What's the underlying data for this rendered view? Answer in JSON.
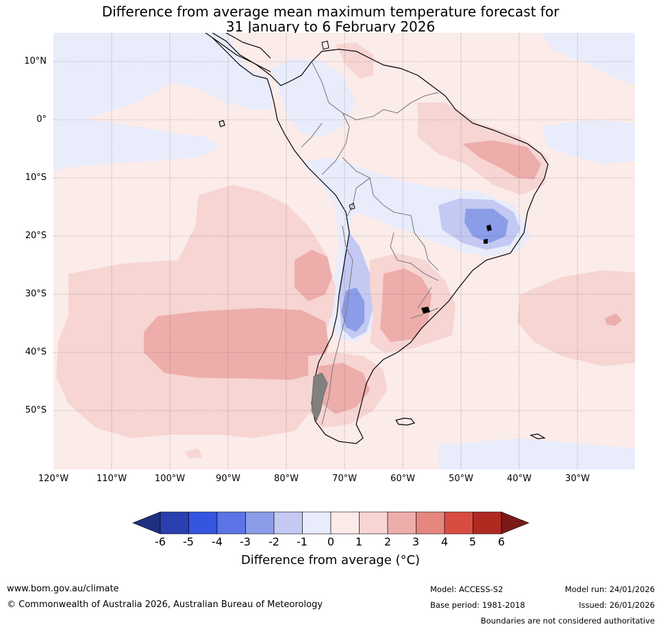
{
  "title": {
    "line1": "Difference from average mean maximum temperature forecast for",
    "line2": "31 January to 6 February 2026"
  },
  "map": {
    "lat_labels": [
      "10°N",
      "0°",
      "10°S",
      "20°S",
      "30°S",
      "40°S",
      "50°S"
    ],
    "lon_labels": [
      "120°W",
      "110°W",
      "100°W",
      "90°W",
      "80°W",
      "70°W",
      "60°W",
      "50°W",
      "40°W",
      "30°W"
    ]
  },
  "colorbar": {
    "colors": [
      "#1f2f80",
      "#2a3fb0",
      "#3355e0",
      "#5c74e6",
      "#8b9ce8",
      "#c3c9f3",
      "#e9ecfb",
      "#fbebe9",
      "#f6d5d3",
      "#edadab",
      "#e6877f",
      "#d94c42",
      "#b02a22",
      "#7b1a18"
    ],
    "tick_labels": [
      "-6",
      "-5",
      "-4",
      "-3",
      "-2",
      "-1",
      "0",
      "1",
      "2",
      "3",
      "4",
      "5",
      "6"
    ],
    "title": "Difference from average (°C)"
  },
  "footer": {
    "website": "www.bom.gov.au/climate",
    "copyright": "© Commonwealth of Australia 2026, Australian Bureau of Meteorology",
    "model": "Model: ACCESS-S2",
    "base_period": "Base period: 1981-2018",
    "model_run": "Model run: 24/01/2026",
    "issued": "Issued: 26/01/2026",
    "disclaimer": "Boundaries are not considered authoritative"
  }
}
